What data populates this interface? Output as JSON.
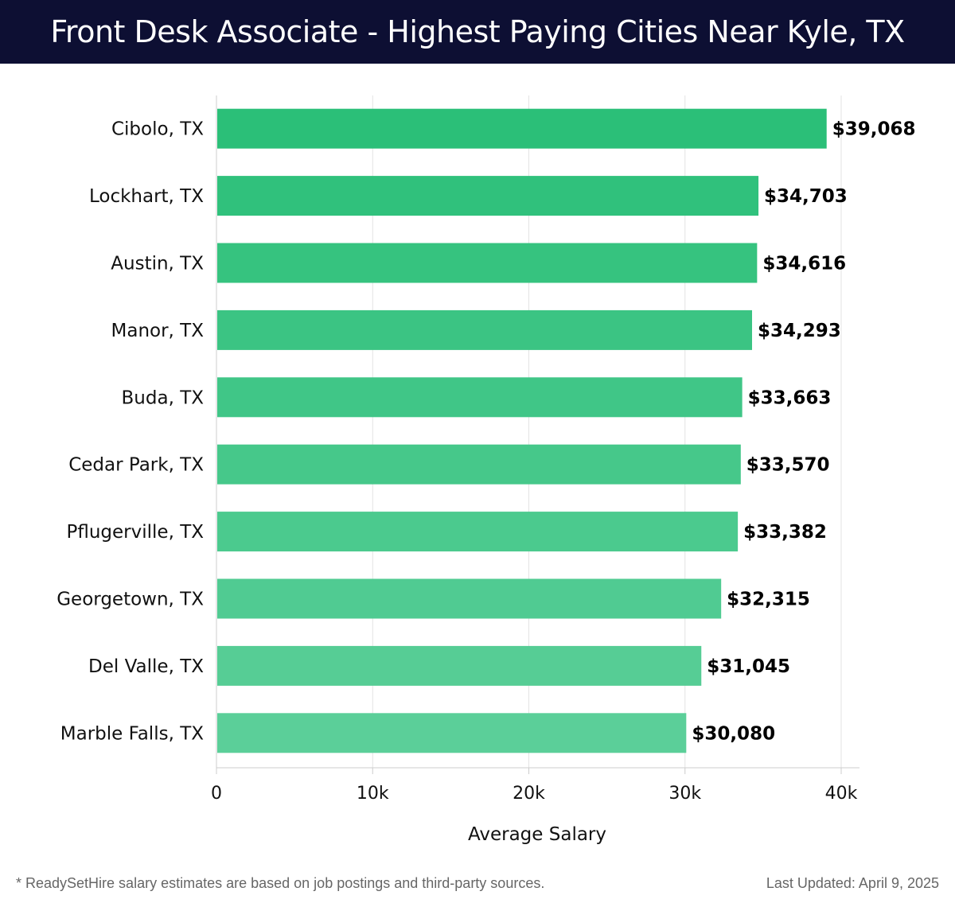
{
  "header": {
    "title": "Front Desk Associate - Highest Paying Cities Near Kyle, TX"
  },
  "chart_data": {
    "type": "bar",
    "orientation": "horizontal",
    "categories": [
      "Cibolo, TX",
      "Lockhart, TX",
      "Austin, TX",
      "Manor, TX",
      "Buda, TX",
      "Cedar Park, TX",
      "Pflugerville, TX",
      "Georgetown, TX",
      "Del Valle, TX",
      "Marble Falls, TX"
    ],
    "values": [
      39068,
      34703,
      34616,
      34293,
      33663,
      33570,
      33382,
      32315,
      31045,
      30080
    ],
    "value_labels": [
      "$39,068",
      "$34,703",
      "$34,616",
      "$34,293",
      "$33,663",
      "$33,570",
      "$33,382",
      "$32,315",
      "$31,045",
      "$30,080"
    ],
    "xlabel": "Average Salary",
    "ylabel": "",
    "xlim": [
      0,
      40000
    ],
    "ticks": [
      0,
      10000,
      20000,
      30000,
      40000
    ],
    "tick_labels": [
      "0",
      "10k",
      "20k",
      "30k",
      "40k"
    ],
    "grid": "vertical",
    "bar_color_top": "#2bbf78",
    "bar_color_bottom": "#5bcf99"
  },
  "footer": {
    "note": "* ReadySetHire salary estimates are based on job postings and third-party sources.",
    "updated": "Last Updated: April 9, 2025"
  }
}
